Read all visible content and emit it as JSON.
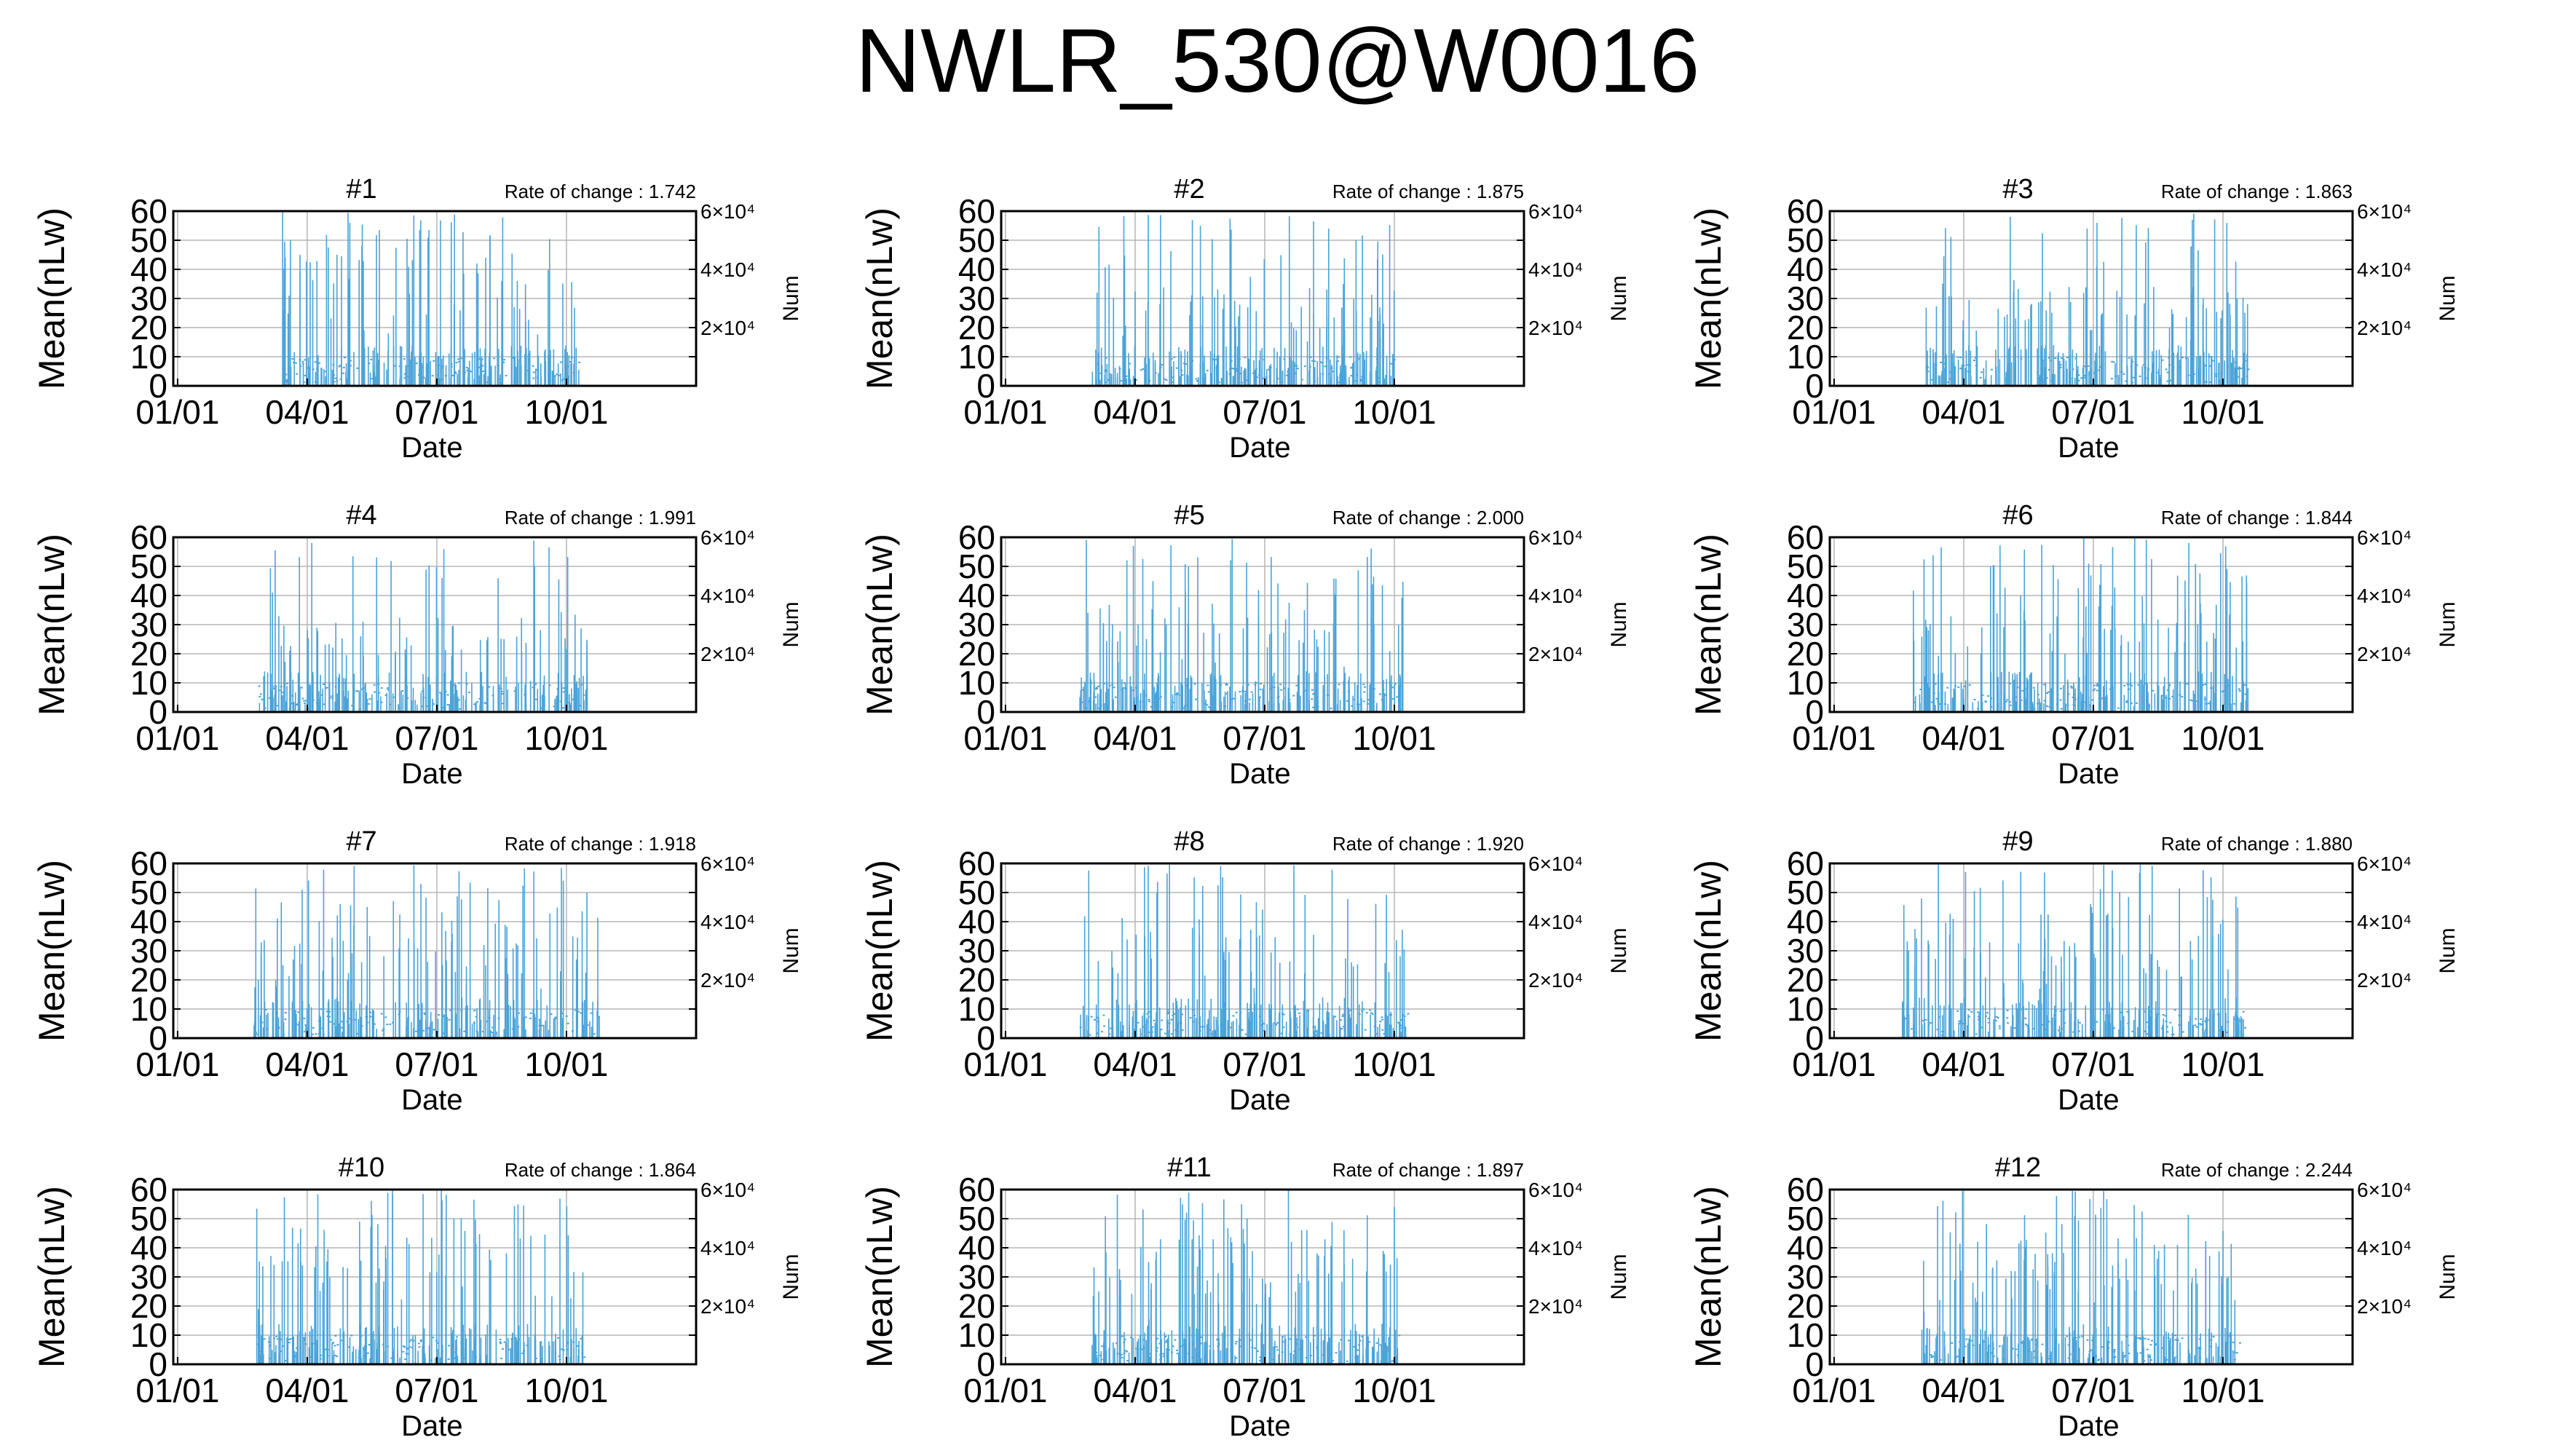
{
  "title": "NWLR_530@W0016",
  "chart_data": {
    "type": "bar",
    "layout": "4x3 grid of small multiples",
    "shared": {
      "xlabel": "Date",
      "ylabel": "Mean(nLw)",
      "y2label": "Num",
      "x_tick_labels": [
        "01/01",
        "04/01",
        "07/01",
        "10/01"
      ],
      "x_ticks_month_index": [
        0,
        3,
        6,
        9
      ],
      "x_range_months": [
        -0.1,
        12.0
      ],
      "y_ticks": [
        "0",
        "10",
        "20",
        "30",
        "40",
        "50",
        "60"
      ],
      "ylim": [
        0,
        60
      ],
      "y2_tick_labels": [
        "2×10⁴",
        "4×10⁴",
        "6×10⁴"
      ],
      "y2_ticks": [
        20000,
        40000,
        60000
      ],
      "y2lim": [
        0,
        60000
      ],
      "grid": true,
      "series_color": "#4aa3d8",
      "rate_label_prefix": "Rate of change : "
    },
    "panels": [
      {
        "label": "#1",
        "rate": "1.742",
        "x_start_month": 2.4,
        "x_end_month": 9.3,
        "peak_level": 0.8,
        "note": "values mostly 0-60, sparse bars"
      },
      {
        "label": "#2",
        "rate": "1.875",
        "x_start_month": 2.0,
        "x_end_month": 9.0,
        "peak_level": 0.45
      },
      {
        "label": "#3",
        "rate": "1.863",
        "x_start_month": 2.1,
        "x_end_month": 9.6,
        "peak_level": 0.45
      },
      {
        "label": "#4",
        "rate": "1.991",
        "x_start_month": 1.8,
        "x_end_month": 9.5,
        "peak_level": 0.35
      },
      {
        "label": "#5",
        "rate": "2.000",
        "x_start_month": 1.7,
        "x_end_month": 9.2,
        "peak_level": 0.55
      },
      {
        "label": "#6",
        "rate": "1.844",
        "x_start_month": 1.8,
        "x_end_month": 9.6,
        "peak_level": 0.6
      },
      {
        "label": "#7",
        "rate": "1.918",
        "x_start_month": 1.7,
        "x_end_month": 9.8,
        "peak_level": 0.6
      },
      {
        "label": "#8",
        "rate": "1.920",
        "x_start_month": 1.7,
        "x_end_month": 9.3,
        "peak_level": 0.6
      },
      {
        "label": "#9",
        "rate": "1.880",
        "x_start_month": 1.5,
        "x_end_month": 9.5,
        "peak_level": 0.55
      },
      {
        "label": "#10",
        "rate": "1.864",
        "x_start_month": 1.8,
        "x_end_month": 9.4,
        "peak_level": 0.7
      },
      {
        "label": "#11",
        "rate": "1.897",
        "x_start_month": 2.0,
        "x_end_month": 9.1,
        "peak_level": 0.75
      },
      {
        "label": "#12",
        "rate": "2.244",
        "x_start_month": 2.0,
        "x_end_month": 9.4,
        "peak_level": 0.65
      }
    ]
  }
}
